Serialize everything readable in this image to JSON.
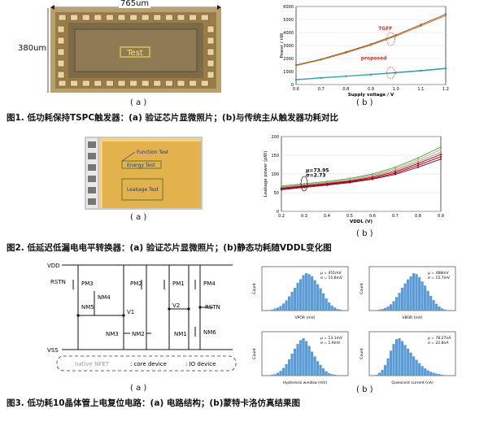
{
  "fig1": {
    "dim_width": "765um",
    "dim_height": "380um",
    "chip_label": "Test",
    "sub_a": "( a )",
    "sub_b": "( b )",
    "caption": "图1. 低功耗保持TSPC触发器：(a) 验证芯片显微照片；(b)与传统主从触发器功耗对比"
  },
  "fig2": {
    "label_function": "Function Test",
    "label_energy": "Energy Test",
    "label_leakage": "Leakage Test",
    "annotation_mu": "μ=73.95",
    "annotation_sigma": "σ=2.73",
    "sub_a": "( a )",
    "sub_b": "( b )",
    "caption": "图2. 低延迟低漏电电平转换器：(a) 验证芯片显微照片；(b)静态功耗随VDDL变化图"
  },
  "fig3": {
    "vdd": "VDD",
    "vss": "VSS",
    "rstn_left": "RSTN",
    "rstn_right": "RSTN",
    "pm3": "PM3",
    "pm2": "PM2",
    "pm1": "PM1",
    "pm4": "PM4",
    "nm4": "NM4",
    "nm5": "NM5",
    "nm3": "NM3",
    "nm2": "NM2",
    "nm1": "NM1",
    "nm6": "NM6",
    "v1": "V1",
    "v2": "V2",
    "legend_native": "native NFET",
    "legend_core": ": core device",
    "legend_io": ": IO device",
    "sub_a": "( a )",
    "sub_b": "( b )",
    "caption": "图3. 低功耗10晶体管上电复位电路：(a) 电路结构；(b)蒙特卡洛仿真结果图"
  },
  "chart_data": [
    {
      "type": "line",
      "title": "",
      "xlabel": "Supply voltage / V",
      "ylabel": "Power / nW",
      "xlim": [
        0.6,
        1.2
      ],
      "ylim": [
        0,
        6000
      ],
      "x_ticks": [
        "0.6",
        "0.7",
        "0.8",
        "0.9",
        "1.0",
        "1.1",
        "1.2"
      ],
      "y_ticks": [
        "0",
        "1000",
        "2000",
        "3000",
        "4000",
        "5000",
        "6000"
      ],
      "x": [
        0.6,
        0.7,
        0.8,
        0.9,
        1.0,
        1.1,
        1.2
      ],
      "series": [
        {
          "name": "TGFF",
          "values": [
            1500,
            1950,
            2500,
            3100,
            3800,
            4600,
            5400
          ]
        },
        {
          "name": "TGFF",
          "values": [
            1450,
            1900,
            2430,
            3030,
            3720,
            4500,
            5300
          ]
        },
        {
          "name": "proposed",
          "values": [
            380,
            520,
            650,
            780,
            920,
            1080,
            1250
          ]
        },
        {
          "name": "proposed",
          "values": [
            360,
            500,
            630,
            760,
            900,
            1050,
            1220
          ]
        }
      ],
      "annotations": [
        "TGFF",
        "proposed"
      ],
      "colors": [
        "#c0392b",
        "#8a9a3b",
        "#1f6fae",
        "#3aa6a0"
      ]
    },
    {
      "type": "line",
      "title": "",
      "xlabel": "VDDL (V)",
      "ylabel": "Leakage power (pW)",
      "xlim": [
        0.2,
        0.9
      ],
      "ylim": [
        0,
        200
      ],
      "x_ticks": [
        "0.2",
        "0.3",
        "0.4",
        "0.5",
        "0.6",
        "0.7",
        "0.8",
        "0.9"
      ],
      "y_ticks": [
        "0",
        "50",
        "100",
        "150",
        "200"
      ],
      "x": [
        0.2,
        0.3,
        0.4,
        0.5,
        0.6,
        0.7,
        0.8,
        0.9
      ],
      "series": [
        {
          "values": [
            68,
            74,
            80,
            88,
            100,
            118,
            143,
            172
          ]
        },
        {
          "values": [
            66,
            72,
            78,
            86,
            97,
            114,
            138,
            165
          ]
        },
        {
          "values": [
            64,
            70,
            76,
            83,
            94,
            110,
            133,
            158
          ]
        },
        {
          "values": [
            62,
            68,
            74,
            81,
            91,
            106,
            128,
            152
          ]
        },
        {
          "values": [
            60,
            66,
            72,
            79,
            88,
            102,
            123,
            146
          ]
        },
        {
          "values": [
            58,
            64,
            70,
            77,
            86,
            99,
            118,
            140
          ]
        }
      ],
      "colors": [
        "#6aa84f",
        "#93c47d",
        "#c27ba0",
        "#cc0000",
        "#990000",
        "#741b47"
      ]
    },
    {
      "type": "bar",
      "title": "",
      "xlabel": "VPOR (mV)",
      "ylabel": "Count",
      "annotation": [
        "μ = 451mV",
        "σ = 15.6mV"
      ],
      "values": [
        1,
        2,
        4,
        6,
        9,
        14,
        20,
        28,
        37,
        45,
        55,
        62,
        70,
        74,
        72,
        68,
        60,
        52,
        44,
        34,
        24,
        16,
        10,
        6,
        3,
        2
      ]
    },
    {
      "type": "bar",
      "title": "",
      "xlabel": "VBOR (mV)",
      "ylabel": "Count",
      "annotation": [
        "μ = 488mV",
        "σ = 15.7mV"
      ],
      "values": [
        1,
        2,
        3,
        5,
        8,
        12,
        18,
        26,
        34,
        44,
        52,
        60,
        66,
        72,
        70,
        64,
        56,
        48,
        38,
        28,
        20,
        13,
        8,
        4,
        2,
        1
      ]
    },
    {
      "type": "bar",
      "title": "",
      "xlabel": "Hysteresis window (mV)",
      "ylabel": "Count",
      "annotation": [
        "μ = 13.1mV",
        "σ = 1.9mV"
      ],
      "values": [
        1,
        2,
        3,
        6,
        10,
        16,
        24,
        34,
        46,
        56,
        66,
        74,
        78,
        72,
        62,
        50,
        40,
        30,
        22,
        15,
        9,
        5,
        3,
        2,
        1,
        1
      ]
    },
    {
      "type": "bar",
      "title": "",
      "xlabel": "Quiescent current (nA)",
      "ylabel": "Count",
      "annotation": [
        "μ = 78.27nA",
        "σ = 22.8nA"
      ],
      "values": [
        2,
        6,
        12,
        22,
        36,
        52,
        66,
        76,
        78,
        72,
        64,
        56,
        48,
        40,
        33,
        26,
        20,
        15,
        11,
        8,
        6,
        4,
        3,
        2,
        1,
        1
      ]
    }
  ]
}
